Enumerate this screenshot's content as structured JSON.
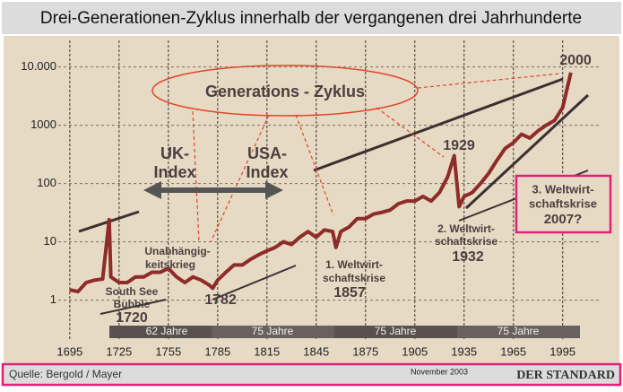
{
  "chart_data": {
    "type": "line",
    "title": "Drei-Generationen-Zyklus innerhalb der vergangenen drei Jahrhunderte",
    "source": "Quelle: Bergold / Mayer",
    "date": "November 2003",
    "publisher": "DER STANDARD",
    "x": [
      1695,
      1700,
      1705,
      1710,
      1715,
      1719,
      1720,
      1725,
      1730,
      1735,
      1740,
      1745,
      1750,
      1755,
      1760,
      1765,
      1770,
      1775,
      1780,
      1782,
      1785,
      1790,
      1795,
      1800,
      1805,
      1810,
      1815,
      1820,
      1825,
      1830,
      1835,
      1840,
      1845,
      1850,
      1855,
      1857,
      1860,
      1865,
      1870,
      1875,
      1880,
      1885,
      1890,
      1895,
      1900,
      1905,
      1910,
      1915,
      1920,
      1925,
      1929,
      1932,
      1935,
      1940,
      1945,
      1950,
      1955,
      1960,
      1965,
      1970,
      1975,
      1980,
      1985,
      1990,
      1995,
      2000
    ],
    "series": [
      {
        "color": "#8e2b2b",
        "values": [
          1.5,
          1.4,
          2,
          2.2,
          2.3,
          24,
          2.5,
          2,
          2,
          2.5,
          2.5,
          3,
          3,
          3.5,
          2.5,
          2,
          2.5,
          2.2,
          1.8,
          1.6,
          2.2,
          3,
          4,
          4,
          5,
          6,
          7,
          8,
          10,
          9,
          12,
          15,
          12,
          16,
          15,
          8,
          15,
          18,
          25,
          25,
          30,
          32,
          35,
          45,
          50,
          50,
          60,
          50,
          70,
          130,
          300,
          40,
          60,
          70,
          100,
          150,
          250,
          400,
          500,
          700,
          600,
          800,
          1000,
          1200,
          2000,
          8000
        ]
      }
    ],
    "xlim": [
      1688,
      2017
    ],
    "ylim": [
      0.2,
      20000
    ],
    "log_scale": true,
    "grid": true,
    "xticks": [
      1695,
      1725,
      1755,
      1785,
      1815,
      1845,
      1875,
      1905,
      1935,
      1965,
      1995
    ],
    "yticks": [
      1,
      10,
      100,
      1000,
      {
        "value": 10000,
        "label": "10.000"
      }
    ],
    "annotations": [
      {
        "lines": [
          "Generations - Zyklus"
        ]
      },
      {
        "lines": [
          "UK-",
          "Index"
        ]
      },
      {
        "lines": [
          "USA-",
          "Index"
        ]
      },
      {
        "lines": [
          "1929"
        ]
      },
      {
        "lines": [
          "2000"
        ]
      },
      {
        "lines": [
          "Unabhängig-",
          "keitskrieg"
        ]
      },
      {
        "lines": [
          "South See",
          "Bubble",
          "1720"
        ]
      },
      {
        "lines": [
          "1782"
        ]
      },
      {
        "lines": [
          "1. Weltwirt-",
          "schaftskrise",
          "1857"
        ]
      },
      {
        "lines": [
          "2. Weltwirt-",
          "schaftskrise",
          "1932"
        ]
      },
      {
        "lines": [
          "3. Weltwirt-",
          "schaftskrise",
          "2007?"
        ]
      },
      {
        "lines": [
          "62 Jahre"
        ]
      },
      {
        "lines": [
          "75 Jahre"
        ]
      },
      {
        "lines": [
          "75 Jahre"
        ]
      },
      {
        "lines": [
          "75 Jahre"
        ]
      }
    ]
  }
}
